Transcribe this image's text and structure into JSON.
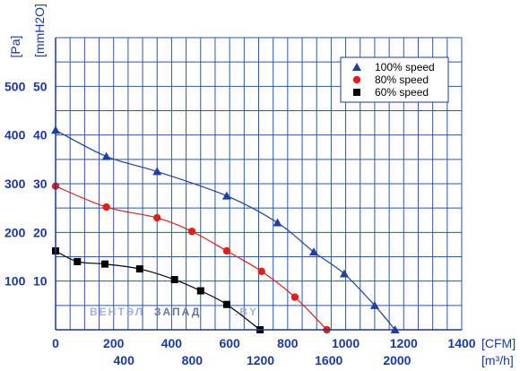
{
  "chart_data": {
    "type": "line",
    "x_primary": {
      "unit": "[CFM]",
      "ticks": [
        0,
        200,
        400,
        600,
        800,
        1000,
        1200,
        1400
      ],
      "range": [
        0,
        1400
      ]
    },
    "x_secondary": {
      "unit": "[m³/h]",
      "ticks": [
        400,
        800,
        1200,
        1600,
        2000
      ]
    },
    "y_left": {
      "unit": "[Pa]",
      "ticks": [
        100,
        200,
        300,
        400,
        500
      ],
      "range": [
        0,
        600
      ]
    },
    "y_right": {
      "unit": "[mmH2O]",
      "ticks": [
        10,
        20,
        30,
        40,
        50
      ]
    },
    "grid": true,
    "legend_position": "top-right",
    "series": [
      {
        "name": "100%  speed",
        "color": "#1f3fa3",
        "marker": "triangle",
        "x": [
          0,
          175,
          350,
          590,
          765,
          890,
          995,
          1100,
          1170
        ],
        "y": [
          410,
          356,
          325,
          275,
          220,
          160,
          115,
          50,
          0
        ]
      },
      {
        "name": "80%  speed",
        "color": "#e0201a",
        "marker": "circle",
        "x": [
          0,
          175,
          350,
          470,
          590,
          710,
          825,
          935
        ],
        "y": [
          295,
          252,
          230,
          202,
          162,
          120,
          67,
          0
        ]
      },
      {
        "name": "60%  speed",
        "color": "#000000",
        "marker": "square",
        "x": [
          0,
          75,
          170,
          290,
          410,
          500,
          590,
          705
        ],
        "y": [
          162,
          140,
          135,
          125,
          103,
          80,
          52,
          0
        ]
      }
    ]
  },
  "watermark": {
    "left": "ВЕНТЭЛ",
    "right": "ЗАПАД",
    "suffix": ".BY"
  }
}
